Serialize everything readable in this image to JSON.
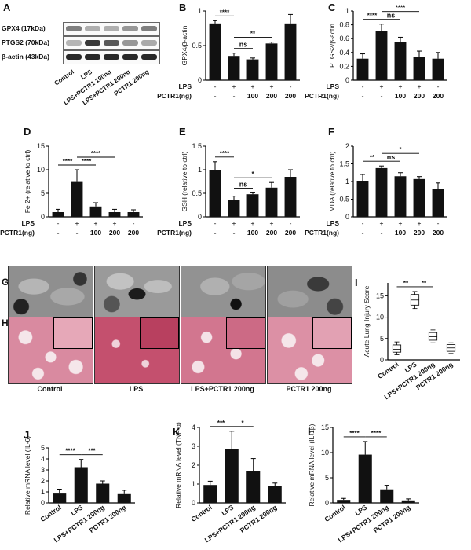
{
  "panels": {
    "A": "A",
    "B": "B",
    "C": "C",
    "D": "D",
    "E": "E",
    "F": "F",
    "G": "G",
    "H": "H",
    "I": "I",
    "J": "J",
    "K": "K",
    "L": "L"
  },
  "blot": {
    "labels": [
      "GPX4 (17kDa)",
      "PTGS2 (70kDa)",
      "β-actin (43kDa)"
    ],
    "lanes": [
      "Control",
      "LPS",
      "LPS+PCTR1 100ng",
      "LPS+PCTR1 200ng",
      "PCTR1 200ng"
    ]
  },
  "treatment_table": {
    "lps_label": "LPS",
    "pctr1_label": "PCTR1(ng)",
    "lps_marks": [
      "-",
      "+",
      "+",
      "+",
      "-"
    ],
    "pctr1_marks": [
      "-",
      "-",
      "100",
      "200",
      "200"
    ]
  },
  "tissue_labels": [
    "Control",
    "LPS",
    "LPS+PCTR1 200ng",
    "PCTR1 200ng"
  ],
  "chart_data": [
    {
      "id": "B",
      "type": "bar",
      "ylabel": "GPX4/β-actin",
      "ylim": [
        0,
        1.0
      ],
      "yticks": [
        0,
        0.5,
        1.0
      ],
      "values": [
        0.82,
        0.35,
        0.3,
        0.53,
        0.82
      ],
      "errors": [
        0.04,
        0.04,
        0.02,
        0.02,
        0.13
      ],
      "significance": [
        {
          "from": 0,
          "to": 1,
          "text": "****"
        },
        {
          "from": 1,
          "to": 2,
          "text": "ns"
        },
        {
          "from": 1,
          "to": 3,
          "text": "**"
        }
      ]
    },
    {
      "id": "C",
      "type": "bar",
      "ylabel": "PTGS2/β-actin",
      "ylim": [
        0,
        1.0
      ],
      "yticks": [
        0,
        0.2,
        0.4,
        0.6,
        0.8,
        1.0
      ],
      "values": [
        0.31,
        0.71,
        0.55,
        0.33,
        0.31
      ],
      "errors": [
        0.07,
        0.1,
        0.07,
        0.09,
        0.09
      ],
      "significance": [
        {
          "from": 0,
          "to": 1,
          "text": "****"
        },
        {
          "from": 1,
          "to": 2,
          "text": "ns"
        },
        {
          "from": 1,
          "to": 3,
          "text": "****"
        }
      ]
    },
    {
      "id": "D",
      "type": "bar",
      "ylabel": "Fe 2+ (relative to ctrl)",
      "ylim": [
        0,
        15
      ],
      "yticks": [
        0,
        5,
        10,
        15
      ],
      "values": [
        1.0,
        7.4,
        2.2,
        1.0,
        1.0
      ],
      "errors": [
        0.6,
        2.6,
        0.8,
        0.6,
        0.5
      ],
      "significance": [
        {
          "from": 0,
          "to": 1,
          "text": "****"
        },
        {
          "from": 1,
          "to": 2,
          "text": "****"
        },
        {
          "from": 1,
          "to": 3,
          "text": "****"
        }
      ]
    },
    {
      "id": "E",
      "type": "bar",
      "ylabel": "GSH (relative to ctrl)",
      "ylim": [
        0,
        1.5
      ],
      "yticks": [
        0,
        0.5,
        1.0,
        1.5
      ],
      "values": [
        1.0,
        0.35,
        0.48,
        0.62,
        0.85
      ],
      "errors": [
        0.17,
        0.09,
        0.03,
        0.11,
        0.15
      ],
      "significance": [
        {
          "from": 0,
          "to": 1,
          "text": "****"
        },
        {
          "from": 1,
          "to": 2,
          "text": "ns"
        },
        {
          "from": 1,
          "to": 3,
          "text": "*"
        }
      ]
    },
    {
      "id": "F",
      "type": "bar",
      "ylabel": "MDA (relative to ctrl)",
      "ylim": [
        0,
        2.0
      ],
      "yticks": [
        0,
        0.5,
        1.0,
        1.5,
        2.0
      ],
      "values": [
        1.0,
        1.38,
        1.15,
        1.07,
        0.8
      ],
      "errors": [
        0.2,
        0.06,
        0.1,
        0.07,
        0.16
      ],
      "significance": [
        {
          "from": 0,
          "to": 1,
          "text": "**"
        },
        {
          "from": 1,
          "to": 2,
          "text": "ns"
        },
        {
          "from": 1,
          "to": 3,
          "text": "*"
        }
      ]
    },
    {
      "id": "I",
      "type": "box",
      "ylabel": "Acute Lung Injury Score",
      "ylim": [
        0,
        18
      ],
      "yticks": [
        0,
        5,
        10,
        15
      ],
      "categories": [
        "Control",
        "LPS",
        "LPS+PCTR1 200ng",
        "PCTR1 200ng"
      ],
      "boxes": [
        {
          "min": 1.2,
          "q1": 1.8,
          "median": 2.5,
          "q3": 3.5,
          "max": 4.2
        },
        {
          "min": 12.0,
          "q1": 12.8,
          "median": 14.0,
          "q3": 15.3,
          "max": 16.0
        },
        {
          "min": 4.0,
          "q1": 4.6,
          "median": 5.4,
          "q3": 6.4,
          "max": 7.0
        },
        {
          "min": 1.5,
          "q1": 2.0,
          "median": 2.8,
          "q3": 3.6,
          "max": 4.0
        }
      ],
      "significance": [
        {
          "from": 0,
          "to": 1,
          "text": "**"
        },
        {
          "from": 1,
          "to": 2,
          "text": "**"
        }
      ]
    },
    {
      "id": "J",
      "type": "bar",
      "ylabel": "Relative mRNA level (IL-6)",
      "ylim": [
        0,
        5
      ],
      "yticks": [
        0,
        1,
        2,
        3,
        4,
        5
      ],
      "categories": [
        "Control",
        "LPS",
        "LPS+PCTR1 200ng",
        "PCTR1 200ng"
      ],
      "values": [
        0.85,
        3.25,
        1.75,
        0.8
      ],
      "errors": [
        0.4,
        0.7,
        0.25,
        0.35
      ],
      "significance": [
        {
          "from": 0,
          "to": 1,
          "text": "****"
        },
        {
          "from": 1,
          "to": 2,
          "text": "***"
        }
      ]
    },
    {
      "id": "K",
      "type": "bar",
      "ylabel": "Relative mRNA level (TNF-α)",
      "ylim": [
        0,
        4
      ],
      "yticks": [
        0,
        1,
        2,
        3,
        4
      ],
      "categories": [
        "Control",
        "LPS",
        "LPS+PCTR1 200ng",
        "PCTR1 200ng"
      ],
      "values": [
        0.95,
        2.85,
        1.7,
        0.9
      ],
      "errors": [
        0.2,
        0.95,
        0.65,
        0.15
      ],
      "significance": [
        {
          "from": 0,
          "to": 1,
          "text": "***"
        },
        {
          "from": 1,
          "to": 2,
          "text": "*"
        }
      ]
    },
    {
      "id": "L",
      "type": "bar",
      "ylabel": "Relative mRNA level (IL-1β)",
      "ylim": [
        0,
        15
      ],
      "yticks": [
        0,
        5,
        10,
        15
      ],
      "categories": [
        "Control",
        "LPS",
        "LPS+PCTR1 200ng",
        "PCTR1 200ng"
      ],
      "values": [
        0.6,
        9.6,
        2.7,
        0.5
      ],
      "errors": [
        0.3,
        2.6,
        0.8,
        0.3
      ],
      "significance": [
        {
          "from": 0,
          "to": 1,
          "text": "****"
        },
        {
          "from": 1,
          "to": 2,
          "text": "****"
        }
      ]
    }
  ],
  "colors": {
    "bar": "#111111",
    "he_background": "#f1dde3",
    "he_tissue": "#c9506f",
    "tem_background": "#8a8a8a"
  }
}
